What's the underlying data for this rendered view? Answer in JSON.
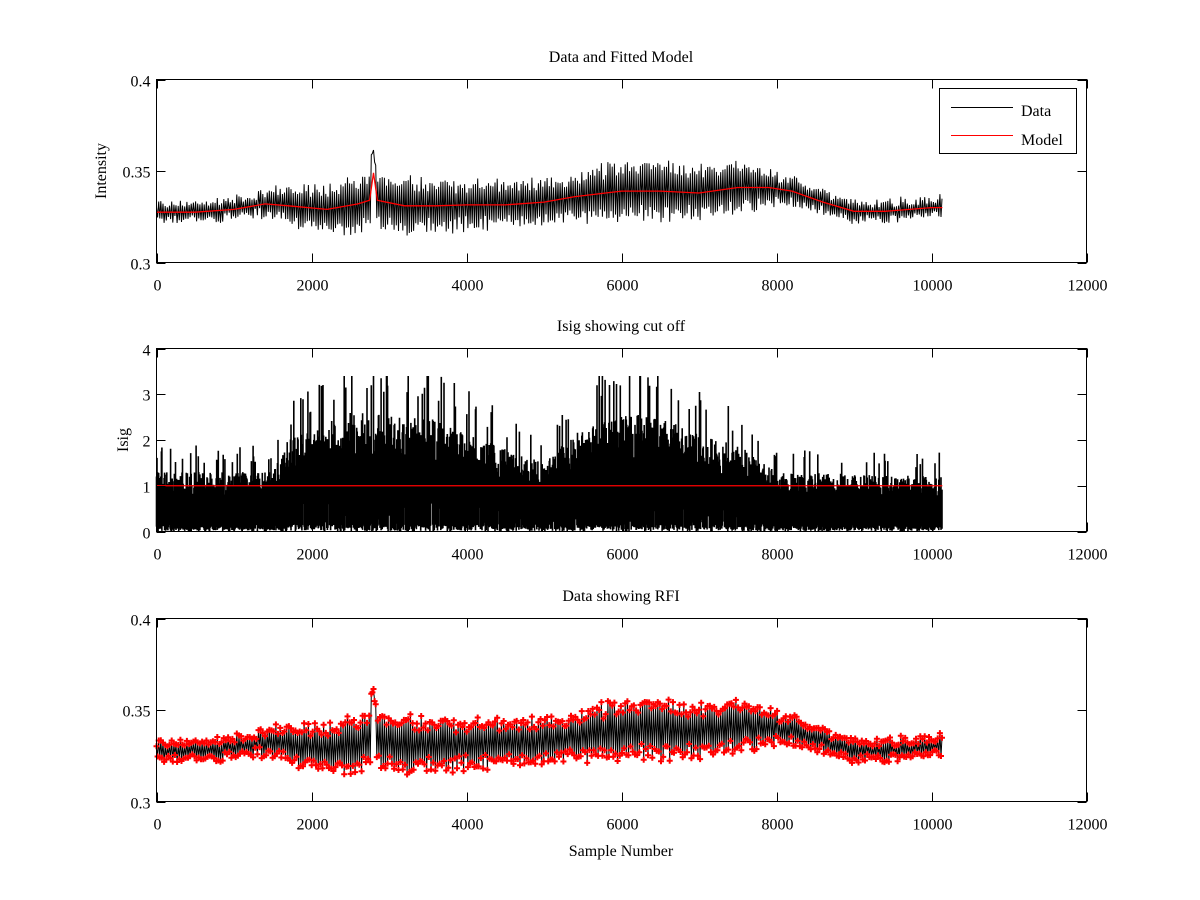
{
  "figure": {
    "xlabel": "Sample Number"
  },
  "chart_data": [
    {
      "type": "line",
      "title": "Data and Fitted Model",
      "xlabel": "",
      "ylabel": "Intensity",
      "xlim": [
        0,
        12000
      ],
      "ylim": [
        0.3,
        0.4
      ],
      "xticks": [
        0,
        2000,
        4000,
        6000,
        8000,
        10000,
        12000
      ],
      "xtick_labels": [
        "0",
        "2000",
        "4000",
        "6000",
        "8000",
        "10000",
        "12000"
      ],
      "yticks": [
        0.3,
        0.35,
        0.4
      ],
      "ytick_labels": [
        "0.3",
        "0.35",
        "0.4"
      ],
      "legend": {
        "placement": "top-right",
        "entries": [
          {
            "label": "Data",
            "color": "#000000"
          },
          {
            "label": "Model",
            "color": "#ff0000"
          }
        ]
      },
      "series": [
        {
          "name": "Data",
          "color": "#000000",
          "style": "oscillating line, envelope = model ± amplitude",
          "x": [
            0,
            1300,
            1500,
            2000,
            2500,
            2800,
            3000,
            4000,
            5000,
            6000,
            7000,
            7700,
            8000,
            9000,
            10140
          ],
          "amplitude": [
            0.006,
            0.006,
            0.009,
            0.012,
            0.015,
            0.017,
            0.016,
            0.014,
            0.012,
            0.017,
            0.015,
            0.013,
            0.008,
            0.006,
            0.006
          ]
        },
        {
          "name": "Model",
          "color": "#ff0000",
          "x": [
            0,
            500,
            1000,
            1400,
            1700,
            2200,
            2600,
            2750,
            2800,
            2850,
            3200,
            3600,
            4000,
            4500,
            5000,
            5400,
            6000,
            6500,
            7000,
            7500,
            7900,
            8200,
            8600,
            9000,
            9400,
            10000,
            10140
          ],
          "y": [
            0.3275,
            0.3275,
            0.329,
            0.332,
            0.331,
            0.329,
            0.332,
            0.334,
            0.349,
            0.334,
            0.331,
            0.331,
            0.3315,
            0.3315,
            0.333,
            0.336,
            0.339,
            0.339,
            0.338,
            0.341,
            0.341,
            0.339,
            0.333,
            0.328,
            0.328,
            0.33,
            0.33
          ]
        }
      ]
    },
    {
      "type": "line",
      "title": "Isig showing cut off",
      "xlabel": "",
      "ylabel": "Isig",
      "xlim": [
        0,
        12000
      ],
      "ylim": [
        0,
        4
      ],
      "xticks": [
        0,
        2000,
        4000,
        6000,
        8000,
        10000,
        12000
      ],
      "xtick_labels": [
        "0",
        "2000",
        "4000",
        "6000",
        "8000",
        "10000",
        "12000"
      ],
      "yticks": [
        0,
        1,
        2,
        3,
        4
      ],
      "ytick_labels": [
        "0",
        "1",
        "2",
        "3",
        "4"
      ],
      "series": [
        {
          "name": "Isig",
          "color": "#000000",
          "style": "dense spikes from 0 up to envelope",
          "x": [
            0,
            1500,
            1700,
            2500,
            3500,
            4500,
            5000,
            5500,
            6200,
            7000,
            7600,
            8000,
            10140
          ],
          "upper_envelope": [
            1.3,
            1.3,
            2.0,
            2.6,
            2.5,
            1.8,
            1.5,
            2.3,
            2.6,
            2.2,
            1.8,
            1.3,
            1.2
          ],
          "peak_max": 3.4
        },
        {
          "name": "Cut off",
          "color": "#ff0000",
          "x": [
            0,
            10140
          ],
          "y": [
            1,
            1
          ]
        }
      ]
    },
    {
      "type": "scatter",
      "title": "Data showing RFI",
      "xlabel": "Sample Number",
      "ylabel": "",
      "xlim": [
        0,
        12000
      ],
      "ylim": [
        0.3,
        0.4
      ],
      "xticks": [
        0,
        2000,
        4000,
        6000,
        8000,
        10000,
        12000
      ],
      "xtick_labels": [
        "0",
        "2000",
        "4000",
        "6000",
        "8000",
        "10000",
        "12000"
      ],
      "yticks": [
        0.3,
        0.35,
        0.4
      ],
      "ytick_labels": [
        "0.3",
        "0.35",
        "0.4"
      ],
      "series": [
        {
          "name": "Data",
          "color": "#000000",
          "marker_color": "#ff0000",
          "marker": "+",
          "note": "same signal as top panel, flagged points marked in red"
        }
      ]
    }
  ]
}
